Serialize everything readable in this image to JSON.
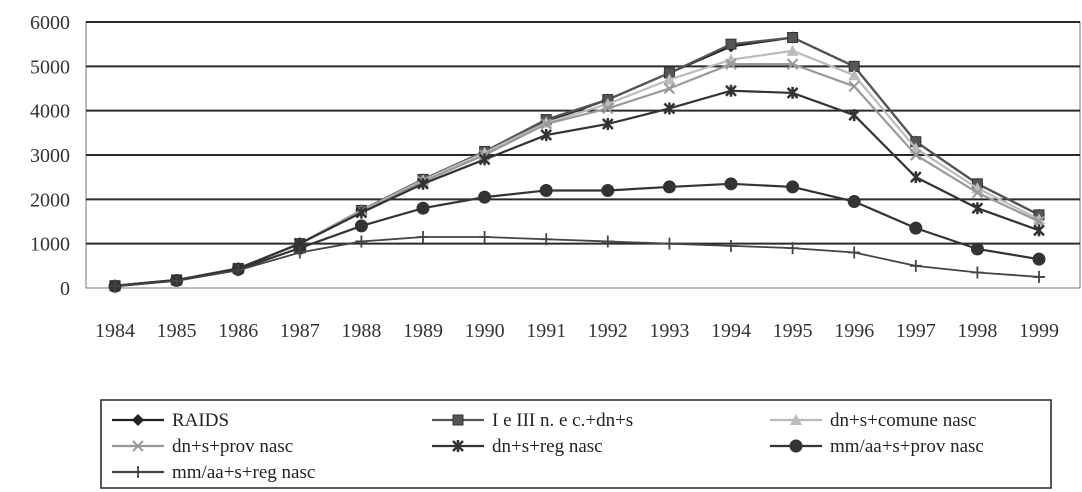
{
  "chart_data": {
    "type": "line",
    "title": "",
    "xlabel": "",
    "ylabel": "",
    "x": [
      "1984",
      "1985",
      "1986",
      "1987",
      "1988",
      "1989",
      "1990",
      "1991",
      "1992",
      "1993",
      "1994",
      "1995",
      "1996",
      "1997",
      "1998",
      "1999"
    ],
    "ylim": [
      0,
      6000
    ],
    "yticks": [
      "0",
      "1000",
      "2000",
      "3000",
      "4000",
      "5000",
      "6000"
    ],
    "grid": true,
    "legend_position": "bottom",
    "series": [
      {
        "name": "RAIDS",
        "marker": "diamond",
        "color": "#222222",
        "values": [
          50,
          180,
          440,
          1000,
          1750,
          2450,
          3050,
          3750,
          4250,
          4850,
          5450,
          5650,
          5000,
          3300,
          2350,
          1650
        ]
      },
      {
        "name": "I e III n. e c.+dn+s",
        "marker": "square",
        "color": "#555555",
        "values": [
          50,
          180,
          440,
          1000,
          1750,
          2450,
          3080,
          3800,
          4250,
          4850,
          5500,
          5650,
          5000,
          3300,
          2350,
          1650
        ]
      },
      {
        "name": "dn+s+comune nasc",
        "marker": "triangle",
        "color": "#bbbbbb",
        "values": [
          50,
          180,
          440,
          1000,
          1740,
          2430,
          3050,
          3730,
          4150,
          4700,
          5150,
          5350,
          4800,
          3150,
          2250,
          1550
        ]
      },
      {
        "name": "dn+s+prov nasc",
        "marker": "x",
        "color": "#999999",
        "values": [
          50,
          180,
          440,
          1000,
          1720,
          2400,
          3000,
          3700,
          4050,
          4500,
          5050,
          5050,
          4550,
          3000,
          2150,
          1500
        ]
      },
      {
        "name": "dn+s+reg nasc",
        "marker": "star",
        "color": "#333333",
        "values": [
          50,
          180,
          440,
          1000,
          1700,
          2350,
          2900,
          3450,
          3700,
          4050,
          4450,
          4400,
          3900,
          2500,
          1800,
          1300
        ]
      },
      {
        "name": "mm/aa+s+prov nasc",
        "marker": "circle",
        "color": "#333333",
        "values": [
          40,
          170,
          420,
          900,
          1400,
          1800,
          2050,
          2200,
          2200,
          2280,
          2350,
          2280,
          1950,
          1350,
          880,
          650
        ]
      },
      {
        "name": "mm/aa+s+reg nasc",
        "marker": "plus",
        "color": "#444444",
        "values": [
          40,
          160,
          400,
          800,
          1050,
          1150,
          1150,
          1100,
          1050,
          1000,
          950,
          900,
          800,
          500,
          350,
          250
        ]
      }
    ]
  }
}
